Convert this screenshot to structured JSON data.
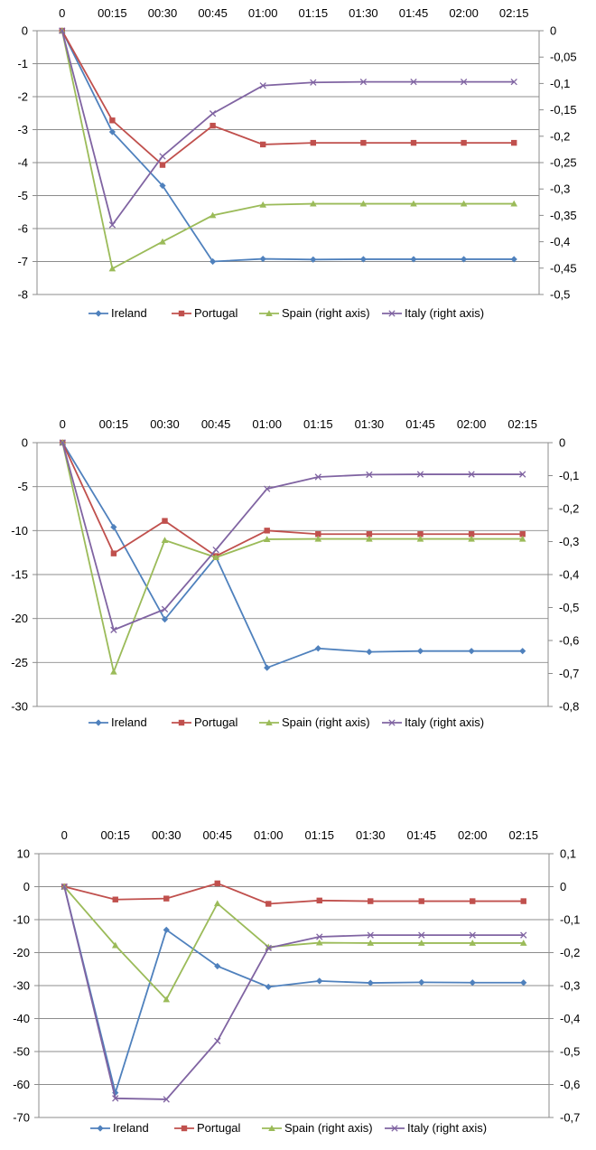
{
  "chart_data": [
    {
      "type": "line",
      "categories": [
        "0",
        "00:15",
        "00:30",
        "00:45",
        "01:00",
        "01:15",
        "01:30",
        "01:45",
        "02:00",
        "02:15"
      ],
      "y_left": {
        "ylim": [
          -8,
          0
        ],
        "ticks": [
          0,
          -1,
          -2,
          -3,
          -4,
          -5,
          -6,
          -7,
          -8
        ],
        "tick_labels": [
          "0",
          "-1",
          "-2",
          "-3",
          "-4",
          "-5",
          "-6",
          "-7",
          "-8"
        ]
      },
      "y_right": {
        "ylim": [
          -0.5,
          0
        ],
        "ticks": [
          0,
          -0.05,
          -0.1,
          -0.15,
          -0.2,
          -0.25,
          -0.3,
          -0.35,
          -0.4,
          -0.45,
          -0.5
        ],
        "tick_labels": [
          "0",
          "-0,05",
          "-0,1",
          "-0,15",
          "-0,2",
          "-0,25",
          "-0,3",
          "-0,35",
          "-0,4",
          "-0,45",
          "-0,5"
        ]
      },
      "grid": true,
      "legend_position": "bottom",
      "series": [
        {
          "name": "Ireland",
          "axis": "left",
          "color": "#4F81BD",
          "marker": "diamond",
          "values": [
            0,
            -3.07,
            -4.7,
            -7.0,
            -6.92,
            -6.94,
            -6.93,
            -6.93,
            -6.93,
            -6.93
          ]
        },
        {
          "name": "Portugal",
          "axis": "left",
          "color": "#C0504D",
          "marker": "square",
          "values": [
            0,
            -2.72,
            -4.07,
            -2.88,
            -3.45,
            -3.4,
            -3.4,
            -3.4,
            -3.4,
            -3.4
          ]
        },
        {
          "name": "Spain (right axis)",
          "axis": "right",
          "color": "#9BBB59",
          "marker": "triangle",
          "values": [
            0,
            -0.451,
            -0.4,
            -0.35,
            -0.33,
            -0.328,
            -0.328,
            -0.328,
            -0.328,
            -0.328
          ]
        },
        {
          "name": "Italy (right axis)",
          "axis": "right",
          "color": "#8064A2",
          "marker": "x",
          "values": [
            0,
            -0.368,
            -0.238,
            -0.157,
            -0.104,
            -0.098,
            -0.097,
            -0.097,
            -0.097,
            -0.097
          ]
        }
      ]
    },
    {
      "type": "line",
      "categories": [
        "0",
        "00:15",
        "00:30",
        "00:45",
        "01:00",
        "01:15",
        "01:30",
        "01:45",
        "02:00",
        "02:15"
      ],
      "y_left": {
        "ylim": [
          -30,
          0
        ],
        "ticks": [
          0,
          -5,
          -10,
          -15,
          -20,
          -25,
          -30
        ],
        "tick_labels": [
          "0",
          "-5",
          "-10",
          "-15",
          "-20",
          "-25",
          "-30"
        ]
      },
      "y_right": {
        "ylim": [
          -0.8,
          0
        ],
        "ticks": [
          0,
          -0.1,
          -0.2,
          -0.3,
          -0.4,
          -0.5,
          -0.6,
          -0.7,
          -0.8
        ],
        "tick_labels": [
          "0",
          "-0,1",
          "-0,2",
          "-0,3",
          "-0,4",
          "-0,5",
          "-0,6",
          "-0,7",
          "-0,8"
        ]
      },
      "grid": true,
      "legend_position": "bottom",
      "series": [
        {
          "name": "Ireland",
          "axis": "left",
          "color": "#4F81BD",
          "marker": "diamond",
          "values": [
            0,
            -9.6,
            -20.1,
            -13.0,
            -25.6,
            -23.4,
            -23.8,
            -23.7,
            -23.7,
            -23.7
          ]
        },
        {
          "name": "Portugal",
          "axis": "left",
          "color": "#C0504D",
          "marker": "square",
          "values": [
            0,
            -12.6,
            -8.9,
            -12.9,
            -10.0,
            -10.4,
            -10.4,
            -10.4,
            -10.4,
            -10.4
          ]
        },
        {
          "name": "Spain (right axis)",
          "axis": "right",
          "color": "#9BBB59",
          "marker": "triangle",
          "values": [
            0,
            -0.695,
            -0.296,
            -0.348,
            -0.293,
            -0.292,
            -0.292,
            -0.292,
            -0.292,
            -0.292
          ]
        },
        {
          "name": "Italy (right axis)",
          "axis": "right",
          "color": "#8064A2",
          "marker": "x",
          "values": [
            0,
            -0.568,
            -0.505,
            -0.325,
            -0.14,
            -0.104,
            -0.097,
            -0.096,
            -0.096,
            -0.096
          ]
        }
      ]
    },
    {
      "type": "line",
      "categories": [
        "0",
        "00:15",
        "00:30",
        "00:45",
        "01:00",
        "01:15",
        "01:30",
        "01:45",
        "02:00",
        "02:15"
      ],
      "y_left": {
        "ylim": [
          -70,
          10
        ],
        "ticks": [
          10,
          0,
          -10,
          -20,
          -30,
          -40,
          -50,
          -60,
          -70
        ],
        "tick_labels": [
          "10",
          "0",
          "-10",
          "-20",
          "-30",
          "-40",
          "-50",
          "-60",
          "-70"
        ]
      },
      "y_right": {
        "ylim": [
          -0.7,
          0.1
        ],
        "ticks": [
          0.1,
          0,
          -0.1,
          -0.2,
          -0.3,
          -0.4,
          -0.5,
          -0.6,
          -0.7
        ],
        "tick_labels": [
          "0,1",
          "0",
          "-0,1",
          "-0,2",
          "-0,3",
          "-0,4",
          "-0,5",
          "-0,6",
          "-0,7"
        ]
      },
      "grid": true,
      "legend_position": "bottom",
      "series": [
        {
          "name": "Ireland",
          "axis": "left",
          "color": "#4F81BD",
          "marker": "diamond",
          "values": [
            0,
            -62.5,
            -13.1,
            -24.1,
            -30.4,
            -28.6,
            -29.2,
            -29.0,
            -29.1,
            -29.1
          ]
        },
        {
          "name": "Portugal",
          "axis": "left",
          "color": "#C0504D",
          "marker": "square",
          "values": [
            0,
            -3.9,
            -3.6,
            1.0,
            -5.2,
            -4.2,
            -4.4,
            -4.4,
            -4.4,
            -4.4
          ]
        },
        {
          "name": "Spain (right axis)",
          "axis": "right",
          "color": "#9BBB59",
          "marker": "triangle",
          "values": [
            0,
            -0.178,
            -0.342,
            -0.051,
            -0.183,
            -0.17,
            -0.171,
            -0.171,
            -0.171,
            -0.171
          ]
        },
        {
          "name": "Italy (right axis)",
          "axis": "right",
          "color": "#8064A2",
          "marker": "x",
          "values": [
            0,
            -0.642,
            -0.645,
            -0.468,
            -0.186,
            -0.152,
            -0.147,
            -0.147,
            -0.147,
            -0.147
          ]
        }
      ]
    }
  ]
}
